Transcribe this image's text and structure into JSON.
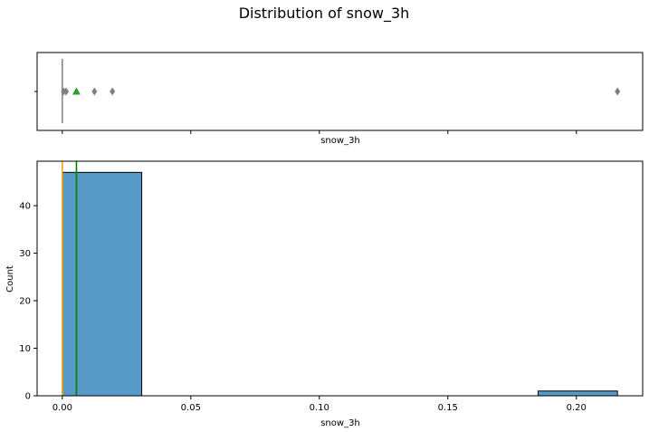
{
  "title": "Distribution of snow_3h",
  "box": {
    "xlabel": "snow_3h",
    "box_color": "#808080",
    "mean_color": "#2ca02c",
    "outliers": [
      0.0005,
      0.0015,
      0.0125,
      0.0195,
      0.216
    ],
    "mean": 0.0055,
    "whisker_low": 0.0,
    "whisker_high": 0.0,
    "median": 0.0
  },
  "chart_data": {
    "type": "bar",
    "title": "Distribution of snow_3h",
    "xlabel": "snow_3h",
    "ylabel": "Count",
    "bins": [
      {
        "x0": 0.0,
        "x1": 0.0309,
        "count": 47
      },
      {
        "x0": 0.1851,
        "x1": 0.216,
        "count": 1
      }
    ],
    "xlim": [
      -0.0098,
      0.2258
    ],
    "ylim": [
      0,
      49.35
    ],
    "xticks": [
      "0.00",
      "0.05",
      "0.10",
      "0.15",
      "0.20"
    ],
    "xtick_values": [
      0.0,
      0.05,
      0.1,
      0.15,
      0.2
    ],
    "yticks": [
      "0",
      "10",
      "20",
      "30",
      "40"
    ],
    "ytick_values": [
      0,
      10,
      20,
      30,
      40
    ],
    "median": 0.0,
    "mean": 0.0055,
    "median_color": "#ffa500",
    "mean_color": "#008000",
    "bar_color": "#5799c7",
    "grid": false
  }
}
